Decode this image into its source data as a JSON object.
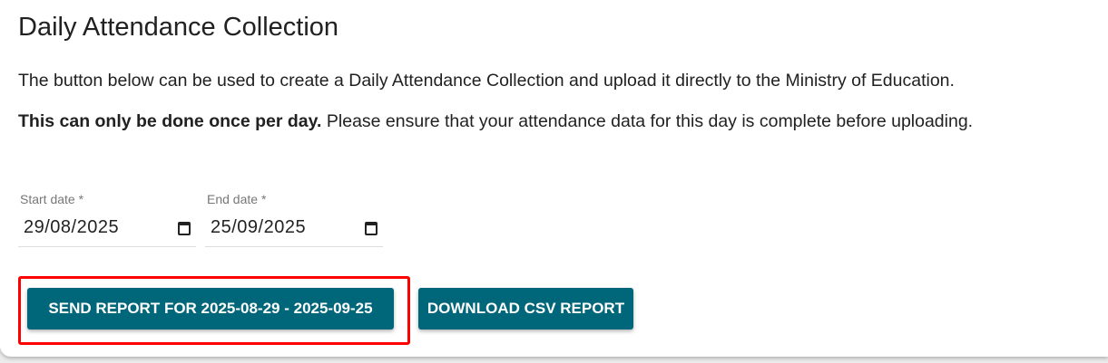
{
  "title": "Daily Attendance Collection",
  "intro": "The button below can be used to create a Daily Attendance Collection and upload it directly to the Ministry of Education.",
  "warning_bold": "This can only be done once per day.",
  "warning_rest": " Please ensure that your attendance data for this day is complete before uploading.",
  "start_date": {
    "label": "Start date *",
    "value": "29/08/2025",
    "icon": "calendar-icon"
  },
  "end_date": {
    "label": "End date *",
    "value": "25/09/2025",
    "icon": "calendar-icon"
  },
  "buttons": {
    "send": "SEND REPORT FOR 2025-08-29 - 2025-09-25",
    "download": "DOWNLOAD CSV REPORT"
  },
  "colors": {
    "button": "#00667a",
    "highlight": "#ff0000"
  }
}
